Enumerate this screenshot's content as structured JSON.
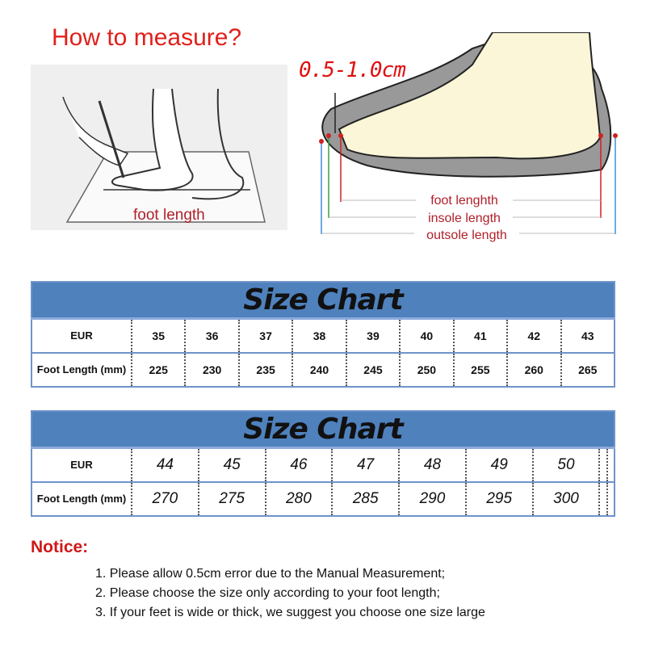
{
  "header": {
    "title": "How to measure?",
    "range": "0.5-1.0cm"
  },
  "diagram": {
    "left_label": "foot length",
    "labels": [
      "foot lenghth",
      "insole length",
      "outsole length"
    ]
  },
  "tables": [
    {
      "title": "Size Chart",
      "row_labels": [
        "EUR",
        "Foot Length (mm)"
      ],
      "eur": [
        "35",
        "36",
        "37",
        "38",
        "39",
        "40",
        "41",
        "42",
        "43"
      ],
      "foot_length": [
        "225",
        "230",
        "235",
        "240",
        "245",
        "250",
        "255",
        "260",
        "265"
      ]
    },
    {
      "title": "Size Chart",
      "row_labels": [
        "EUR",
        "Foot Length (mm)"
      ],
      "eur": [
        "44",
        "45",
        "46",
        "47",
        "48",
        "49",
        "50",
        "",
        ""
      ],
      "foot_length": [
        "270",
        "275",
        "280",
        "285",
        "290",
        "295",
        "300",
        "",
        ""
      ]
    }
  ],
  "notice": {
    "title": "Notice:",
    "items": [
      "1. Please allow 0.5cm error due to the Manual Measurement;",
      "2. Please choose the size only according to your foot length;",
      "3. If your feet is wide or thick, we suggest you choose one size large"
    ]
  },
  "colors": {
    "accent_red": "#e0201c",
    "header_blue": "#4f81bd"
  }
}
